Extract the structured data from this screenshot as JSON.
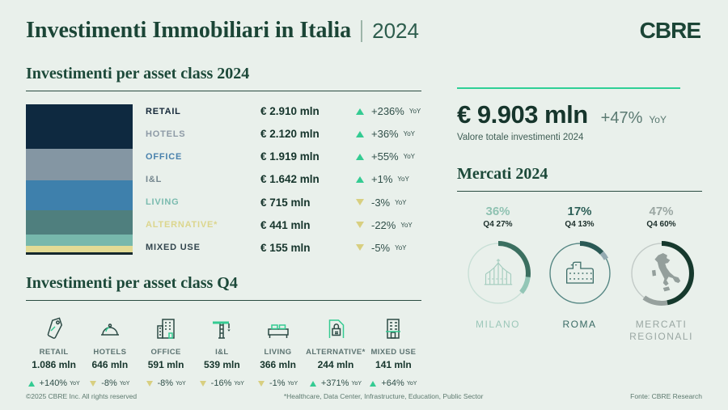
{
  "header": {
    "title": "Investimenti Immobiliari in Italia",
    "year": "2024",
    "logo": "CBRE"
  },
  "colors": {
    "background": "#e9f0eb",
    "heading_green": "#1c4939",
    "dark_value": "#16352c",
    "mint_accent": "#34cb92",
    "khaki_down": "#d8cf80",
    "muted_text": "#5d7a6f"
  },
  "asset_class_2024": {
    "heading": "Investimenti per asset class 2024",
    "rows": [
      {
        "id": "retail",
        "label": "RETAIL",
        "value": "€ 2.910 mln",
        "amount_mln": 2910,
        "change": "+236%",
        "yoy": "YoY",
        "direction": "up",
        "bar_color": "#0e2940",
        "label_color": "#16293a"
      },
      {
        "id": "hotels",
        "label": "HOTELS",
        "value": "€ 2.120 mln",
        "amount_mln": 2120,
        "change": "+36%",
        "yoy": "YoY",
        "direction": "up",
        "bar_color": "#8496a3",
        "label_color": "#8d9aa6"
      },
      {
        "id": "office",
        "label": "OFFICE",
        "value": "€ 1.919 mln",
        "amount_mln": 1919,
        "change": "+55%",
        "yoy": "YoY",
        "direction": "up",
        "bar_color": "#3e80ac",
        "label_color": "#4a82ad"
      },
      {
        "id": "il",
        "label": "I&L",
        "value": "€ 1.642 mln",
        "amount_mln": 1642,
        "change": "+1%",
        "yoy": "YoY",
        "direction": "up",
        "bar_color": "#4f7f7e",
        "label_color": "#75878f"
      },
      {
        "id": "living",
        "label": "LIVING",
        "value": "€ 715 mln",
        "amount_mln": 715,
        "change": "-3%",
        "yoy": "YoY",
        "direction": "down",
        "bar_color": "#77b8ac",
        "label_color": "#7abbaf"
      },
      {
        "id": "alternative",
        "label": "ALTERNATIVE*",
        "value": "€ 441 mln",
        "amount_mln": 441,
        "change": "-22%",
        "yoy": "YoY",
        "direction": "down",
        "bar_color": "#e2db95",
        "label_color": "#dcd68d"
      },
      {
        "id": "mixed-use",
        "label": "MIXED USE",
        "value": "€ 155 mln",
        "amount_mln": 155,
        "change": "-5%",
        "yoy": "YoY",
        "direction": "down",
        "bar_color": "#15282e",
        "label_color": "#33464e"
      }
    ]
  },
  "total": {
    "value": "€ 9.903 mln",
    "change": "+47%",
    "yoy": "YoY",
    "caption": "Valore totale investimenti 2024"
  },
  "markets": {
    "heading": "Mercati 2024",
    "items": [
      {
        "id": "milano",
        "pct": "36%",
        "q4_label": "Q4 27%",
        "city": "MILANO",
        "icon": "milano-duomo",
        "pct_color": "#8fc2b2",
        "city_color": "#9cc7b9",
        "ring_color": "#c8dfd6",
        "seg1_pct": 27,
        "seg1_color": "#3b6f60",
        "seg2_pct": 9,
        "seg2_color": "#93c6b6"
      },
      {
        "id": "roma",
        "pct": "17%",
        "q4_label": "Q4 13%",
        "city": "ROMA",
        "icon": "roma-colosseum",
        "pct_color": "#2e6058",
        "city_color": "#396a64",
        "ring_color": "#568784",
        "seg1_pct": 13,
        "seg1_color": "#2a5955",
        "seg2_pct": 4,
        "seg2_color": "#94aab1"
      },
      {
        "id": "mercati-regionali",
        "pct": "47%",
        "q4_label": "Q4 60%",
        "city": "MERCATI REGIONALI",
        "icon": "italy-map",
        "pct_color": "#9aa6a2",
        "city_color": "#9aa7a3",
        "ring_color": "#c2cac7",
        "seg1_pct": 47,
        "seg1_color": "#16392d",
        "seg2_pct": 13,
        "seg2_color": "#97a19e"
      }
    ]
  },
  "q4": {
    "heading": "Investimenti per asset class Q4",
    "items": [
      {
        "id": "retail",
        "label": "RETAIL",
        "value": "1.086 mln",
        "change": "+140%",
        "yoy": "YoY",
        "direction": "up",
        "icon": "price-tag"
      },
      {
        "id": "hotels",
        "label": "HOTELS",
        "value": "646 mln",
        "change": "-8%",
        "yoy": "YoY",
        "direction": "down",
        "icon": "cloche"
      },
      {
        "id": "office",
        "label": "OFFICE",
        "value": "591 mln",
        "change": "-8%",
        "yoy": "YoY",
        "direction": "down",
        "icon": "office-building"
      },
      {
        "id": "il",
        "label": "I&L",
        "value": "539 mln",
        "change": "-16%",
        "yoy": "YoY",
        "direction": "down",
        "icon": "crane"
      },
      {
        "id": "living",
        "label": "LIVING",
        "value": "366 mln",
        "change": "-1%",
        "yoy": "YoY",
        "direction": "down",
        "icon": "bed"
      },
      {
        "id": "alternative",
        "label": "ALTERNATIVE*",
        "value": "244 mln",
        "change": "+371%",
        "yoy": "YoY",
        "direction": "up",
        "icon": "lock-document"
      },
      {
        "id": "mixed-use",
        "label": "MIXED USE",
        "value": "141 mln",
        "change": "+64%",
        "yoy": "YoY",
        "direction": "up",
        "icon": "storefront-building"
      }
    ]
  },
  "footer": {
    "copyright": "©2025 CBRE Inc. All rights reserved",
    "note": "*Healthcare, Data Center, Infrastructure, Education, Public Sector",
    "source": "Fonte: CBRE Research"
  },
  "chart_data": [
    {
      "type": "bar",
      "title": "Investimenti per asset class 2024",
      "stacked": true,
      "categories": [
        "RETAIL",
        "HOTELS",
        "OFFICE",
        "I&L",
        "LIVING",
        "ALTERNATIVE*",
        "MIXED USE"
      ],
      "values": [
        2910,
        2120,
        1919,
        1642,
        715,
        441,
        155
      ],
      "unit": "€ mln",
      "yoy_change_pct": [
        236,
        36,
        55,
        1,
        -3,
        -22,
        -5
      ],
      "total": 9903,
      "total_yoy_change_pct": 47
    },
    {
      "type": "pie",
      "title": "Mercati 2024",
      "categories": [
        "MILANO",
        "ROMA",
        "MERCATI REGIONALI"
      ],
      "values": [
        36,
        17,
        47
      ],
      "q4_values": [
        27,
        13,
        60
      ],
      "unit": "%"
    },
    {
      "type": "bar",
      "title": "Investimenti per asset class Q4",
      "categories": [
        "RETAIL",
        "HOTELS",
        "OFFICE",
        "I&L",
        "LIVING",
        "ALTERNATIVE*",
        "MIXED USE"
      ],
      "values": [
        1086,
        646,
        591,
        539,
        366,
        244,
        141
      ],
      "unit": "€ mln",
      "yoy_change_pct": [
        140,
        -8,
        -8,
        -16,
        -1,
        371,
        64
      ]
    }
  ]
}
